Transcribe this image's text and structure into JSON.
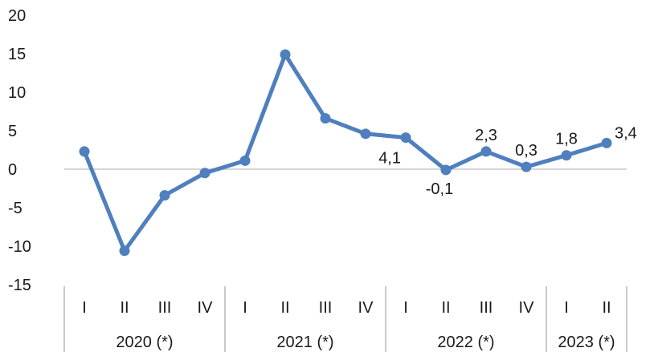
{
  "chart_data": {
    "type": "line",
    "title": "",
    "xlabel": "",
    "ylabel": "",
    "ylim": [
      -15,
      20
    ],
    "yticks": [
      -15,
      -10,
      -5,
      0,
      5,
      10,
      15,
      20
    ],
    "grid": false,
    "legend": "none",
    "colors": {
      "line": "#4f7fbd",
      "axis": "#c8c8c8",
      "text": "#1a1a1a",
      "separator": "#b8b8b8"
    },
    "categories": [
      "I",
      "II",
      "III",
      "IV",
      "I",
      "II",
      "III",
      "IV",
      "I",
      "II",
      "III",
      "IV",
      "I",
      "II"
    ],
    "groups": [
      {
        "label": "2020 (*)",
        "count": 4
      },
      {
        "label": "2021 (*)",
        "count": 4
      },
      {
        "label": "2022 (*)",
        "count": 4
      },
      {
        "label": "2023 (*)",
        "count": 2
      }
    ],
    "series": [
      {
        "values": [
          2.3,
          -10.6,
          -3.4,
          -0.5,
          1.1,
          14.9,
          6.6,
          4.6,
          4.1,
          -0.1,
          2.3,
          0.3,
          1.8,
          3.4
        ]
      }
    ],
    "data_labels": [
      {
        "index": 8,
        "text": "4,1"
      },
      {
        "index": 9,
        "text": "-0,1"
      },
      {
        "index": 10,
        "text": "2,3"
      },
      {
        "index": 11,
        "text": "0,3"
      },
      {
        "index": 12,
        "text": "1,8"
      },
      {
        "index": 13,
        "text": "3,4"
      }
    ]
  }
}
